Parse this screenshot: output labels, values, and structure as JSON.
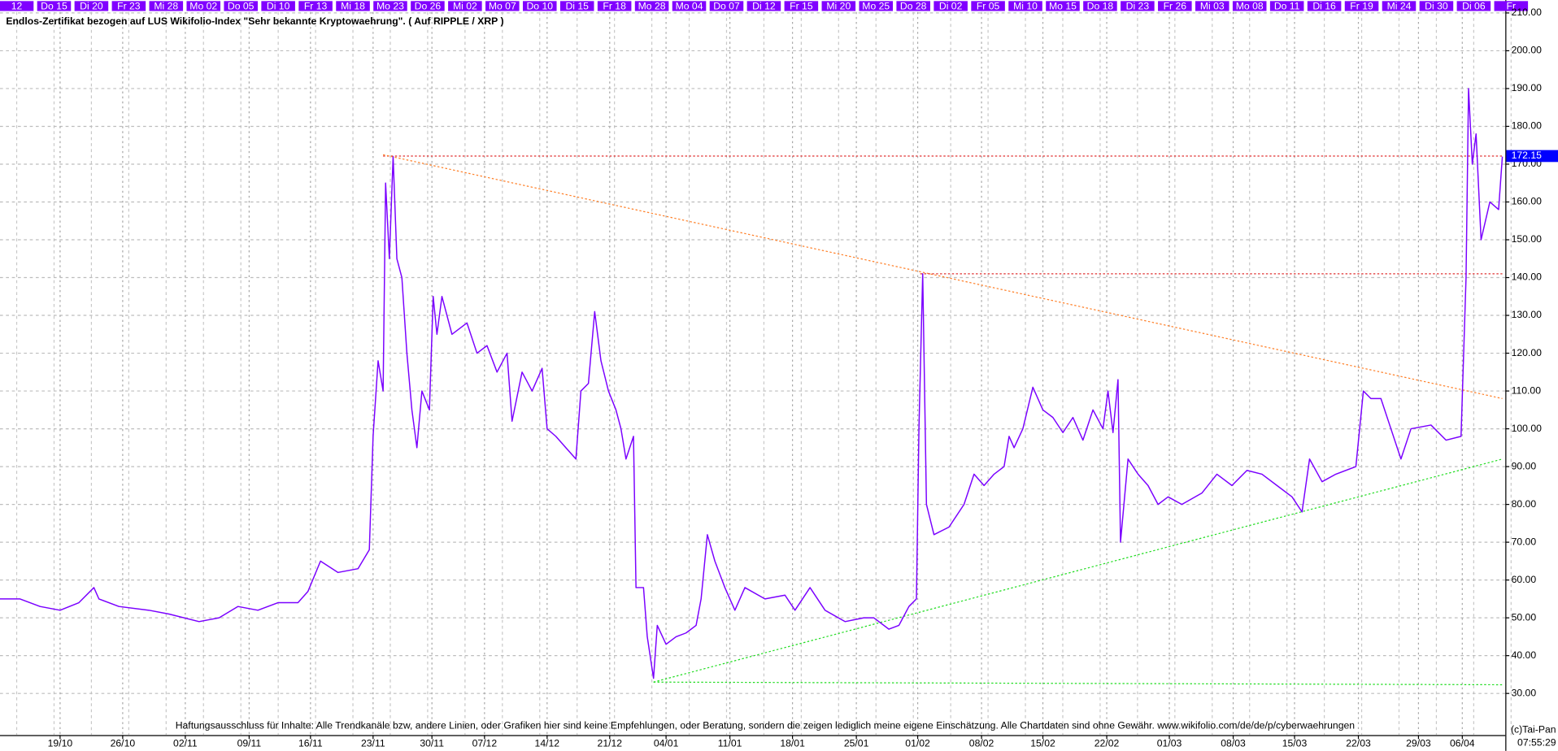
{
  "chart_data": {
    "type": "line",
    "title": "Endlos-Zertifikat bezogen auf LUS Wikifolio-Index \"Sehr bekannte Kryptowaehrung\". ( Auf RIPPLE / XRP )",
    "top_labels": [
      "12",
      "Do 15",
      "Di 20",
      "Fr 23",
      "Mi 28",
      "Mo 02",
      "Do 05",
      "Di 10",
      "Fr 13",
      "Mi 18",
      "Mo 23",
      "Do 26",
      "Mi 02",
      "Mo 07",
      "Do 10",
      "Di 15",
      "Fr 18",
      "Mo 28",
      "Mo 04",
      "Do 07",
      "Di 12",
      "Fr 15",
      "Mi 20",
      "Mo 25",
      "Do 28",
      "Di 02",
      "Fr 05",
      "Mi 10",
      "Mo 15",
      "Do 18",
      "Di 23",
      "Fr 26",
      "Mi 03",
      "Mo 08",
      "Do 11",
      "Di 16",
      "Fr 19",
      "Mi 24",
      "Di 30",
      "Di 06",
      "Fr"
    ],
    "xlim": [
      0,
      120
    ],
    "xticks": [
      {
        "value": 4.8,
        "label": "19/10"
      },
      {
        "value": 9.8,
        "label": "26/10"
      },
      {
        "value": 14.8,
        "label": "02/11"
      },
      {
        "value": 19.9,
        "label": "09/11"
      },
      {
        "value": 24.8,
        "label": "16/11"
      },
      {
        "value": 29.8,
        "label": "23/11"
      },
      {
        "value": 34.5,
        "label": "30/11"
      },
      {
        "value": 38.7,
        "label": "07/12"
      },
      {
        "value": 43.7,
        "label": "14/12"
      },
      {
        "value": 48.7,
        "label": "21/12"
      },
      {
        "value": 53.2,
        "label": "04/01"
      },
      {
        "value": 58.3,
        "label": "11/01"
      },
      {
        "value": 63.3,
        "label": "18/01"
      },
      {
        "value": 68.4,
        "label": "25/01"
      },
      {
        "value": 73.3,
        "label": "01/02"
      },
      {
        "value": 78.4,
        "label": "08/02"
      },
      {
        "value": 83.3,
        "label": "15/02"
      },
      {
        "value": 88.4,
        "label": "22/02"
      },
      {
        "value": 93.4,
        "label": "01/03"
      },
      {
        "value": 98.5,
        "label": "08/03"
      },
      {
        "value": 103.4,
        "label": "15/03"
      },
      {
        "value": 108.5,
        "label": "22/03"
      },
      {
        "value": 113.3,
        "label": "29/03"
      },
      {
        "value": 116.8,
        "label": "06/04"
      }
    ],
    "ylim": [
      19,
      213.4
    ],
    "yticks": [
      {
        "value": 30,
        "label": "30.00"
      },
      {
        "value": 40,
        "label": "40.00"
      },
      {
        "value": 50,
        "label": "50.00"
      },
      {
        "value": 60,
        "label": "60.00"
      },
      {
        "value": 70,
        "label": "70.00"
      },
      {
        "value": 80,
        "label": "80.00"
      },
      {
        "value": 90,
        "label": "90.00"
      },
      {
        "value": 100,
        "label": "100.00"
      },
      {
        "value": 110,
        "label": "110.00"
      },
      {
        "value": 120,
        "label": "120.00"
      },
      {
        "value": 130,
        "label": "130.00"
      },
      {
        "value": 140,
        "label": "140.00"
      },
      {
        "value": 150,
        "label": "150.00"
      },
      {
        "value": 160,
        "label": "160.00"
      },
      {
        "value": 170,
        "label": "170.00"
      },
      {
        "value": 180,
        "label": "180.00"
      },
      {
        "value": 190,
        "label": "190.00"
      },
      {
        "value": 200,
        "label": "200.00"
      },
      {
        "value": 210,
        "label": "210.00"
      }
    ],
    "grid": true,
    "series": [
      {
        "color": "#7a00ff",
        "x": [
          0,
          1.6,
          3.2,
          4.8,
          6.3,
          7.5,
          7.9,
          9.5,
          11.9,
          13.5,
          15.9,
          17.5,
          19.0,
          20.6,
          22.2,
          23.8,
          24.6,
          25.6,
          27.0,
          28.6,
          29.5,
          29.8,
          30.2,
          30.6,
          30.8,
          31.1,
          31.4,
          31.7,
          32.1,
          32.5,
          32.9,
          33.3,
          33.7,
          34.3,
          34.6,
          34.9,
          35.3,
          36.1,
          37.3,
          38.1,
          38.9,
          39.7,
          40.5,
          40.9,
          41.7,
          42.5,
          43.3,
          43.7,
          44.4,
          45.2,
          46.0,
          46.4,
          47.0,
          47.5,
          48.0,
          48.6,
          49.2,
          49.6,
          50.0,
          50.6,
          50.8,
          51.4,
          51.7,
          52.2,
          52.5,
          53.2,
          54.0,
          54.8,
          55.6,
          56.0,
          56.5,
          57.1,
          57.9,
          58.7,
          59.5,
          61.1,
          62.7,
          63.5,
          64.7,
          65.9,
          67.5,
          69.0,
          69.8,
          71.0,
          71.8,
          72.6,
          73.2,
          73.4,
          73.7,
          74.0,
          74.6,
          75.8,
          77.0,
          77.8,
          78.6,
          79.4,
          80.2,
          80.6,
          81.0,
          81.7,
          82.5,
          83.3,
          84.1,
          84.9,
          85.7,
          86.5,
          87.3,
          88.1,
          88.5,
          88.9,
          89.3,
          89.5,
          90.1,
          90.9,
          91.7,
          92.5,
          93.3,
          94.4,
          96.0,
          97.2,
          98.4,
          99.6,
          100.8,
          102.0,
          103.2,
          104.0,
          104.6,
          105.6,
          106.7,
          108.3,
          108.9,
          109.5,
          110.3,
          111.1,
          111.9,
          112.7,
          114.3,
          115.5,
          116.7,
          117.1,
          117.3,
          117.6,
          117.9,
          118.3,
          119.0,
          119.7,
          120.0
        ],
        "values": [
          55,
          55,
          53,
          52,
          54,
          58,
          55,
          53,
          52,
          51,
          49,
          50,
          53,
          52,
          54,
          54,
          57,
          65,
          62,
          63,
          68,
          98,
          118,
          110,
          165,
          145,
          172,
          145,
          140,
          120,
          105,
          95,
          110,
          105,
          135,
          125,
          135,
          125,
          128,
          120,
          122,
          115,
          120,
          102,
          115,
          110,
          116,
          100,
          98,
          95,
          92,
          110,
          112,
          131,
          118,
          110,
          105,
          100,
          92,
          98,
          58,
          58,
          45,
          34,
          48,
          43,
          45,
          46,
          48,
          55,
          72,
          65,
          58,
          52,
          58,
          55,
          56,
          52,
          58,
          52,
          49,
          50,
          50,
          47,
          48,
          53,
          55,
          100,
          141,
          80,
          72,
          74,
          80,
          88,
          85,
          88,
          90,
          98,
          95,
          100,
          111,
          105,
          103,
          99,
          103,
          97,
          105,
          100,
          110,
          99,
          113,
          70,
          92,
          88,
          85,
          80,
          82,
          80,
          83,
          88,
          85,
          89,
          88,
          85,
          82,
          78,
          92,
          86,
          88,
          90,
          110,
          108,
          108,
          100,
          92,
          100,
          101,
          97,
          98,
          140,
          190,
          170,
          178,
          150,
          160,
          158,
          172
        ]
      }
    ],
    "trendlines": [
      {
        "color": "#e03030",
        "points": [
          [
            30.6,
            172.15
          ],
          [
            120,
            172.15
          ]
        ]
      },
      {
        "color": "#ff7f27",
        "points": [
          [
            30.6,
            172.5
          ],
          [
            120,
            108
          ]
        ]
      },
      {
        "color": "#e03030",
        "points": [
          [
            73.5,
            141
          ],
          [
            120,
            141
          ]
        ]
      },
      {
        "color": "#22dd22",
        "points": [
          [
            52.2,
            33
          ],
          [
            120,
            92
          ]
        ]
      },
      {
        "color": "#22dd22",
        "points": [
          [
            52.2,
            33
          ],
          [
            120,
            32.3
          ]
        ]
      }
    ],
    "last_price": {
      "value": 172.15,
      "label": "172.15"
    },
    "disclaimer": "Haftungsausschluss für Inhalte: Alle Trendkanäle bzw, andere Linien, oder Grafiken hier sind keine Empfehlungen, oder Beratung, sondern die zeigen lediglich meine eigene Einschätzung. Alle Chartdaten sind ohne Gewähr.  www.wikifolio.com/de/de/p/cyberwaehrungen",
    "copyright": "(c)Tai-Pan",
    "time": "07:55:29"
  }
}
